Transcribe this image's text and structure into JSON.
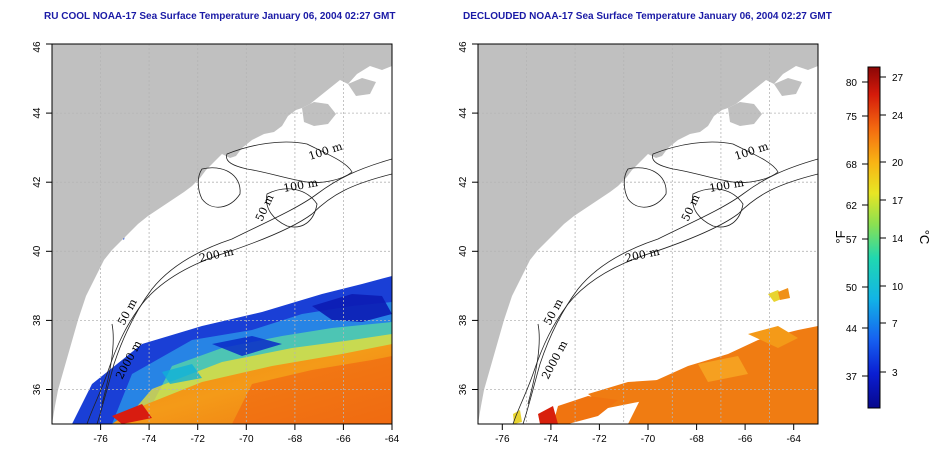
{
  "titles": {
    "left": "RU COOL NOAA-17 Sea Surface Temperature January 06, 2004 02:27 GMT",
    "right": "DECLOUDED NOAA-17 Sea Surface Temperature January 06, 2004 02:27 GMT"
  },
  "axes": {
    "lon_ticks": [
      "-76",
      "-74",
      "-72",
      "-70",
      "-68",
      "-66",
      "-64"
    ],
    "lat_ticks": [
      "36",
      "38",
      "40",
      "42",
      "44",
      "46"
    ],
    "lon_range": [
      -77,
      -63
    ],
    "lat_range": [
      35,
      46
    ]
  },
  "contours": {
    "labels_left": [
      "100 m",
      "100 m",
      "50 m",
      "200 m",
      "50 m",
      "2000 m"
    ],
    "labels_right": [
      "100 m",
      "100 m",
      "50 m",
      "200 m",
      "50 m",
      "2000 m"
    ]
  },
  "colorbar": {
    "fahrenheit_ticks": [
      "80",
      "75",
      "68",
      "62",
      "57",
      "50",
      "44",
      "37"
    ],
    "celsius_ticks": [
      "27",
      "24",
      "20",
      "17",
      "14",
      "10",
      "7",
      "3"
    ],
    "unit_f": "°F",
    "unit_c": "°C"
  },
  "colors": {
    "land": "#c0c0c0",
    "title": "#1a1aa6",
    "grid": "#b5b5b5"
  }
}
